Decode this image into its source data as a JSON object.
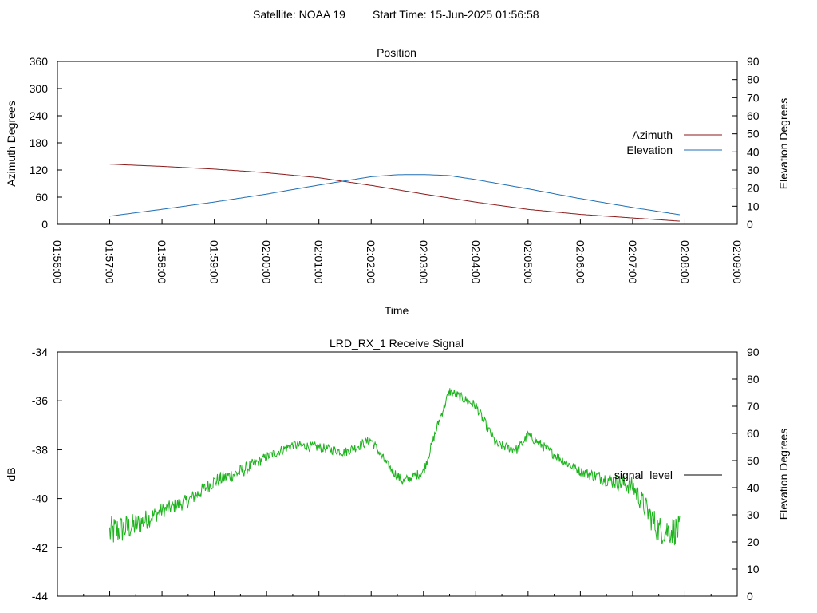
{
  "header": {
    "satellite_label": "Satellite: NOAA 19",
    "start_time_label": "Start Time: 15-Jun-2025 01:56:58"
  },
  "colors": {
    "azimuth": "#8b1a1a",
    "elevation": "#1f6fb5",
    "signal": "#1db31d",
    "signal_legend": "#000000"
  },
  "chart_data": [
    {
      "type": "line",
      "title": "Position",
      "xlabel": "Time",
      "ylabel": "Azimuth Degrees",
      "y2label": "Elevation Degrees",
      "x_ticks": [
        "01:56:00",
        "01:57:00",
        "01:58:00",
        "01:59:00",
        "02:00:00",
        "02:01:00",
        "02:02:00",
        "02:03:00",
        "02:04:00",
        "02:05:00",
        "02:06:00",
        "02:07:00",
        "02:08:00",
        "02:09:00"
      ],
      "x_range_minutes": [
        0,
        13
      ],
      "ylim": [
        0,
        360
      ],
      "y_ticks": [
        0,
        60,
        120,
        180,
        240,
        300,
        360
      ],
      "y2lim": [
        0,
        90
      ],
      "y2_ticks": [
        0,
        10,
        20,
        30,
        40,
        50,
        60,
        70,
        80,
        90
      ],
      "legend": "right",
      "series": [
        {
          "name": "Azimuth",
          "axis": "y",
          "x": [
            1.0,
            2.0,
            3.0,
            4.0,
            5.0,
            6.0,
            7.0,
            8.0,
            9.0,
            10.0,
            11.0,
            11.9
          ],
          "values": [
            133,
            128,
            122,
            114,
            103,
            86,
            67,
            49,
            33,
            22,
            14,
            7
          ]
        },
        {
          "name": "Elevation",
          "axis": "y2",
          "x": [
            1.0,
            2.0,
            3.0,
            4.0,
            5.0,
            6.0,
            6.5,
            7.0,
            7.5,
            8.0,
            9.0,
            10.0,
            11.0,
            11.9
          ],
          "values": [
            4.5,
            8.3,
            12.3,
            16.7,
            21.7,
            26.3,
            27.4,
            27.5,
            26.9,
            24.7,
            19.6,
            14.2,
            9.3,
            5.3
          ]
        }
      ]
    },
    {
      "type": "line",
      "title": "LRD_RX_1 Receive Signal",
      "ylabel": "dB",
      "y2label": "Elevation Degrees",
      "x_range_minutes": [
        0,
        13
      ],
      "ylim": [
        -44,
        -34
      ],
      "y_ticks": [
        -44,
        -42,
        -40,
        -38,
        -36,
        -34
      ],
      "y2lim": [
        0,
        90
      ],
      "y2_ticks": [
        0,
        10,
        20,
        30,
        40,
        50,
        60,
        70,
        80,
        90
      ],
      "legend": "right",
      "series": [
        {
          "name": "signal_level",
          "axis": "y",
          "x": [
            1.0,
            1.5,
            2.0,
            2.5,
            3.0,
            3.5,
            4.0,
            4.5,
            5.0,
            5.5,
            6.0,
            6.3,
            6.6,
            7.0,
            7.3,
            7.5,
            8.0,
            8.4,
            8.8,
            9.0,
            9.5,
            10.0,
            10.5,
            11.0,
            11.5,
            11.9
          ],
          "values": [
            -41.4,
            -41.1,
            -40.5,
            -40.1,
            -39.3,
            -38.9,
            -38.3,
            -37.8,
            -37.9,
            -38.1,
            -37.6,
            -38.6,
            -39.3,
            -38.9,
            -36.8,
            -35.6,
            -36.2,
            -37.8,
            -38.0,
            -37.4,
            -38.2,
            -38.9,
            -39.2,
            -39.5,
            -41.3,
            -41.3
          ],
          "noise": [
            0.7,
            0.5,
            0.3,
            0.3,
            0.3,
            0.3,
            0.2,
            0.2,
            0.2,
            0.2,
            0.2,
            0.2,
            0.2,
            0.2,
            0.2,
            0.2,
            0.2,
            0.2,
            0.2,
            0.2,
            0.2,
            0.2,
            0.3,
            0.4,
            0.6,
            0.6
          ]
        }
      ]
    }
  ]
}
